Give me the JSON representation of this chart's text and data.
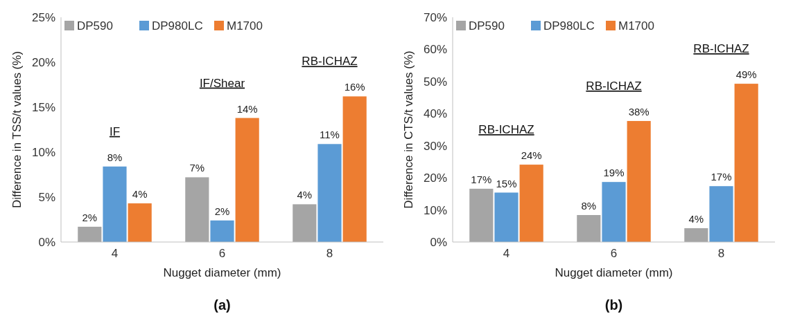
{
  "chart_data": [
    {
      "type": "bar",
      "title": "(a)",
      "xlabel": "Nugget diameter (mm)",
      "ylabel": "Difference in TSS/t values (%)",
      "categories": [
        "4",
        "6",
        "8"
      ],
      "series": [
        {
          "name": "DP590",
          "color": "#a5a5a5",
          "values": [
            1.7,
            7.2,
            4.2
          ],
          "value_labels": [
            "2%",
            "7%",
            "4%"
          ]
        },
        {
          "name": "DP980LC",
          "color": "#5b9bd5",
          "values": [
            8.4,
            2.4,
            10.9
          ],
          "value_labels": [
            "8%",
            "2%",
            "11%"
          ]
        },
        {
          "name": "M1700",
          "color": "#ed7d31",
          "values": [
            4.3,
            13.8,
            16.2
          ],
          "value_labels": [
            "4%",
            "14%",
            "16%"
          ]
        }
      ],
      "ylim": [
        0,
        25
      ],
      "yticks": [
        {
          "value": 0,
          "label": "0%"
        },
        {
          "value": 5,
          "label": "5%"
        },
        {
          "value": 10,
          "label": "10%"
        },
        {
          "value": 15,
          "label": "15%"
        },
        {
          "value": 20,
          "label": "20%"
        },
        {
          "value": 25,
          "label": "25%"
        }
      ],
      "grid": false,
      "legend": "top left",
      "annotations": [
        "IF",
        "IF/Shear",
        "RB-ICHAZ"
      ]
    },
    {
      "type": "bar",
      "title": "(b)",
      "xlabel": "Nugget diameter (mm)",
      "ylabel": "Difference in CTS/t values (%)",
      "categories": [
        "4",
        "6",
        "8"
      ],
      "series": [
        {
          "name": "DP590",
          "color": "#a5a5a5",
          "values": [
            16.6,
            8.4,
            4.3
          ],
          "value_labels": [
            "17%",
            "8%",
            "4%"
          ]
        },
        {
          "name": "DP980LC",
          "color": "#5b9bd5",
          "values": [
            15.4,
            18.7,
            17.4
          ],
          "value_labels": [
            "15%",
            "19%",
            "17%"
          ]
        },
        {
          "name": "M1700",
          "color": "#ed7d31",
          "values": [
            24.1,
            37.7,
            49.3
          ],
          "value_labels": [
            "24%",
            "38%",
            "49%"
          ]
        }
      ],
      "ylim": [
        0,
        70
      ],
      "yticks": [
        {
          "value": 0,
          "label": "0%"
        },
        {
          "value": 10,
          "label": "10%"
        },
        {
          "value": 20,
          "label": "20%"
        },
        {
          "value": 30,
          "label": "30%"
        },
        {
          "value": 40,
          "label": "40%"
        },
        {
          "value": 50,
          "label": "50%"
        },
        {
          "value": 60,
          "label": "60%"
        },
        {
          "value": 70,
          "label": "70%"
        }
      ],
      "grid": false,
      "legend": "top left",
      "annotations": [
        "RB-ICHAZ",
        "RB-ICHAZ",
        "RB-ICHAZ"
      ]
    }
  ]
}
